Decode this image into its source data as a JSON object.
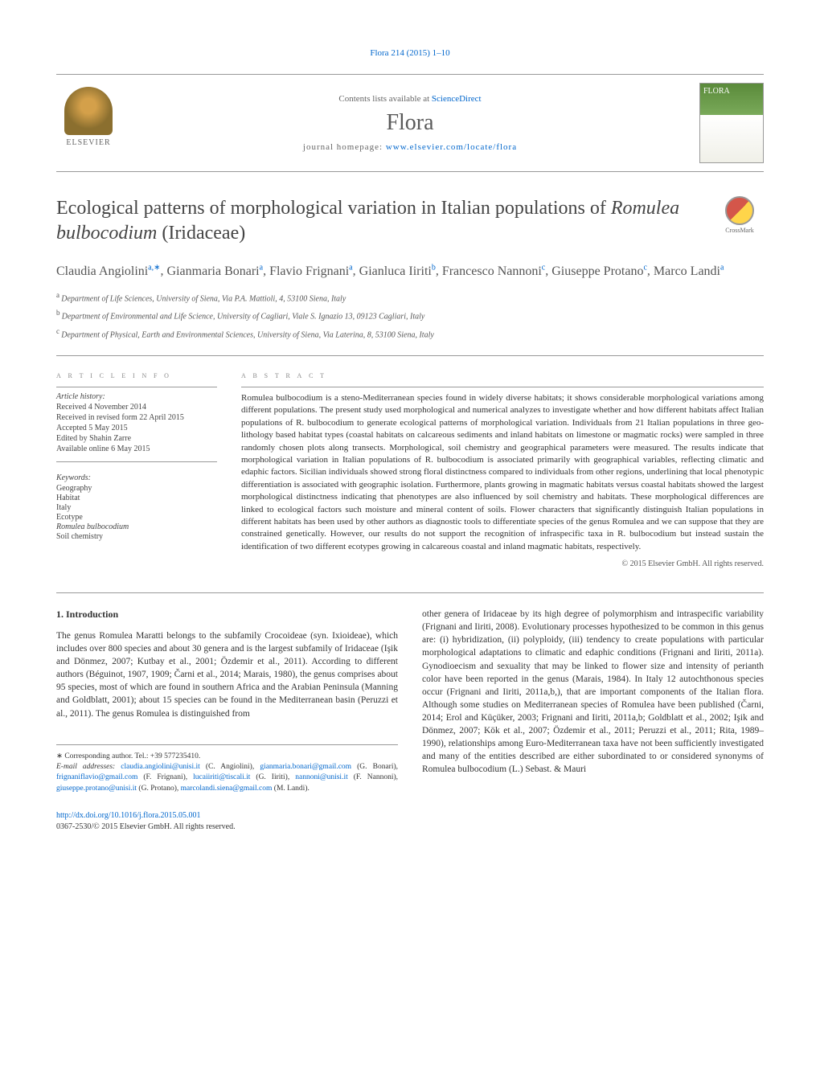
{
  "header_link": "Flora 214 (2015) 1–10",
  "contents_text": "Contents lists available at ",
  "contents_link": "ScienceDirect",
  "journal_name": "Flora",
  "homepage_label": "journal homepage: ",
  "homepage_url": "www.elsevier.com/locate/flora",
  "elsevier_label": "ELSEVIER",
  "flora_label": "FLORA",
  "crossmark_label": "CrossMark",
  "title_pre": "Ecological patterns of morphological variation in Italian populations of ",
  "title_species": "Romulea bulbocodium",
  "title_post": " (Iridaceae)",
  "authors": [
    {
      "name": "Claudia Angiolini",
      "sup": "a,∗"
    },
    {
      "name": "Gianmaria Bonari",
      "sup": "a"
    },
    {
      "name": "Flavio Frignani",
      "sup": "a"
    },
    {
      "name": "Gianluca Iiriti",
      "sup": "b"
    },
    {
      "name": "Francesco Nannoni",
      "sup": "c"
    },
    {
      "name": "Giuseppe Protano",
      "sup": "c"
    },
    {
      "name": "Marco Landi",
      "sup": "a"
    }
  ],
  "affiliations": [
    {
      "sup": "a",
      "text": "Department of Life Sciences, University of Siena, Via P.A. Mattioli, 4, 53100 Siena, Italy"
    },
    {
      "sup": "b",
      "text": "Department of Environmental and Life Science, University of Cagliari, Viale S. Ignazio 13, 09123 Cagliari, Italy"
    },
    {
      "sup": "c",
      "text": "Department of Physical, Earth and Environmental Sciences, University of Siena, Via Laterina, 8, 53100 Siena, Italy"
    }
  ],
  "info_heading": "a r t i c l e   i n f o",
  "abstract_heading": "a b s t r a c t",
  "history_label": "Article history:",
  "history": [
    "Received 4 November 2014",
    "Received in revised form 22 April 2015",
    "Accepted 5 May 2015",
    "Edited by Shahin Zarre",
    "Available online 6 May 2015"
  ],
  "keywords_label": "Keywords:",
  "keywords": [
    "Geography",
    "Habitat",
    "Italy",
    "Ecotype",
    "Romulea bulbocodium",
    "Soil chemistry"
  ],
  "abstract_text": "Romulea bulbocodium is a steno-Mediterranean species found in widely diverse habitats; it shows considerable morphological variations among different populations. The present study used morphological and numerical analyzes to investigate whether and how different habitats affect Italian populations of R. bulbocodium to generate ecological patterns of morphological variation. Individuals from 21 Italian populations in three geo-lithology based habitat types (coastal habitats on calcareous sediments and inland habitats on limestone or magmatic rocks) were sampled in three randomly chosen plots along transects. Morphological, soil chemistry and geographical parameters were measured. The results indicate that morphological variation in Italian populations of R. bulbocodium is associated primarily with geographical variables, reflecting climatic and edaphic factors. Sicilian individuals showed strong floral distinctness compared to individuals from other regions, underlining that local phenotypic differentiation is associated with geographic isolation. Furthermore, plants growing in magmatic habitats versus coastal habitats showed the largest morphological distinctness indicating that phenotypes are also influenced by soil chemistry and habitats. These morphological differences are linked to ecological factors such moisture and mineral content of soils. Flower characters that significantly distinguish Italian populations in different habitats has been used by other authors as diagnostic tools to differentiate species of the genus Romulea and we can suppose that they are constrained genetically. However, our results do not support the recognition of infraspecific taxa in R. bulbocodium but instead sustain the identification of two different ecotypes growing in calcareous coastal and inland magmatic habitats, respectively.",
  "copyright": "© 2015 Elsevier GmbH. All rights reserved.",
  "section1_heading": "1.  Introduction",
  "col1_para": "The genus Romulea Maratti belongs to the subfamily Crocoideae (syn. Ixioideae), which includes over 800 species and about 30 genera and is the largest subfamily of Iridaceae (Işik and Dönmez, 2007; Kutbay et al., 2001; Özdemir et al., 2011). According to different authors (Béguinot, 1907, 1909; Čarni et al., 2014; Marais, 1980), the genus comprises about 95 species, most of which are found in southern Africa and the Arabian Peninsula (Manning and Goldblatt, 2001); about 15 species can be found in the Mediterranean basin (Peruzzi et al., 2011). The genus Romulea is distinguished from",
  "col2_para": "other genera of Iridaceae by its high degree of polymorphism and intraspecific variability (Frignani and Iiriti, 2008). Evolutionary processes hypothesized to be common in this genus are: (i) hybridization, (ii) polyploidy, (iii) tendency to create populations with particular morphological adaptations to climatic and edaphic conditions (Frignani and Iiriti, 2011a). Gynodioecism and sexuality that may be linked to flower size and intensity of perianth color have been reported in the genus (Marais, 1984). In Italy 12 autochthonous species occur (Frignani and Iiriti, 2011a,b,), that are important components of the Italian flora. Although some studies on Mediterranean species of Romulea have been published (Čarni, 2014; Erol and Küçüker, 2003; Frignani and Iiriti, 2011a,b; Goldblatt et al., 2002; Işik and Dönmez, 2007; Kök et al., 2007; Özdemir et al., 2011; Peruzzi et al., 2011; Rita, 1989–1990), relationships among Euro-Mediterranean taxa have not been sufficiently investigated and many of the entities described are either subordinated to or considered synonyms of Romulea bulbocodium (L.) Sebast. & Mauri",
  "corresponding": "∗ Corresponding author. Tel.: +39 577235410.",
  "email_label": "E-mail addresses: ",
  "emails": [
    {
      "addr": "claudia.angiolini@unisi.it",
      "who": "(C. Angiolini)"
    },
    {
      "addr": "gianmaria.bonari@gmail.com",
      "who": "(G. Bonari)"
    },
    {
      "addr": "frignaniflavio@gmail.com",
      "who": "(F. Frignani)"
    },
    {
      "addr": "lucaiiriti@tiscali.it",
      "who": "(G. Iiriti)"
    },
    {
      "addr": "nannoni@unisi.it",
      "who": "(F. Nannoni)"
    },
    {
      "addr": "giuseppe.protano@unisi.it",
      "who": "(G. Protano)"
    },
    {
      "addr": "marcolandi.siena@gmail.com",
      "who": "(M. Landi)"
    }
  ],
  "doi": "http://dx.doi.org/10.1016/j.flora.2015.05.001",
  "issn_line": "0367-2530/© 2015 Elsevier GmbH. All rights reserved.",
  "colors": {
    "link": "#0066cc",
    "text": "#333333",
    "heading": "#444444",
    "border": "#999999"
  }
}
